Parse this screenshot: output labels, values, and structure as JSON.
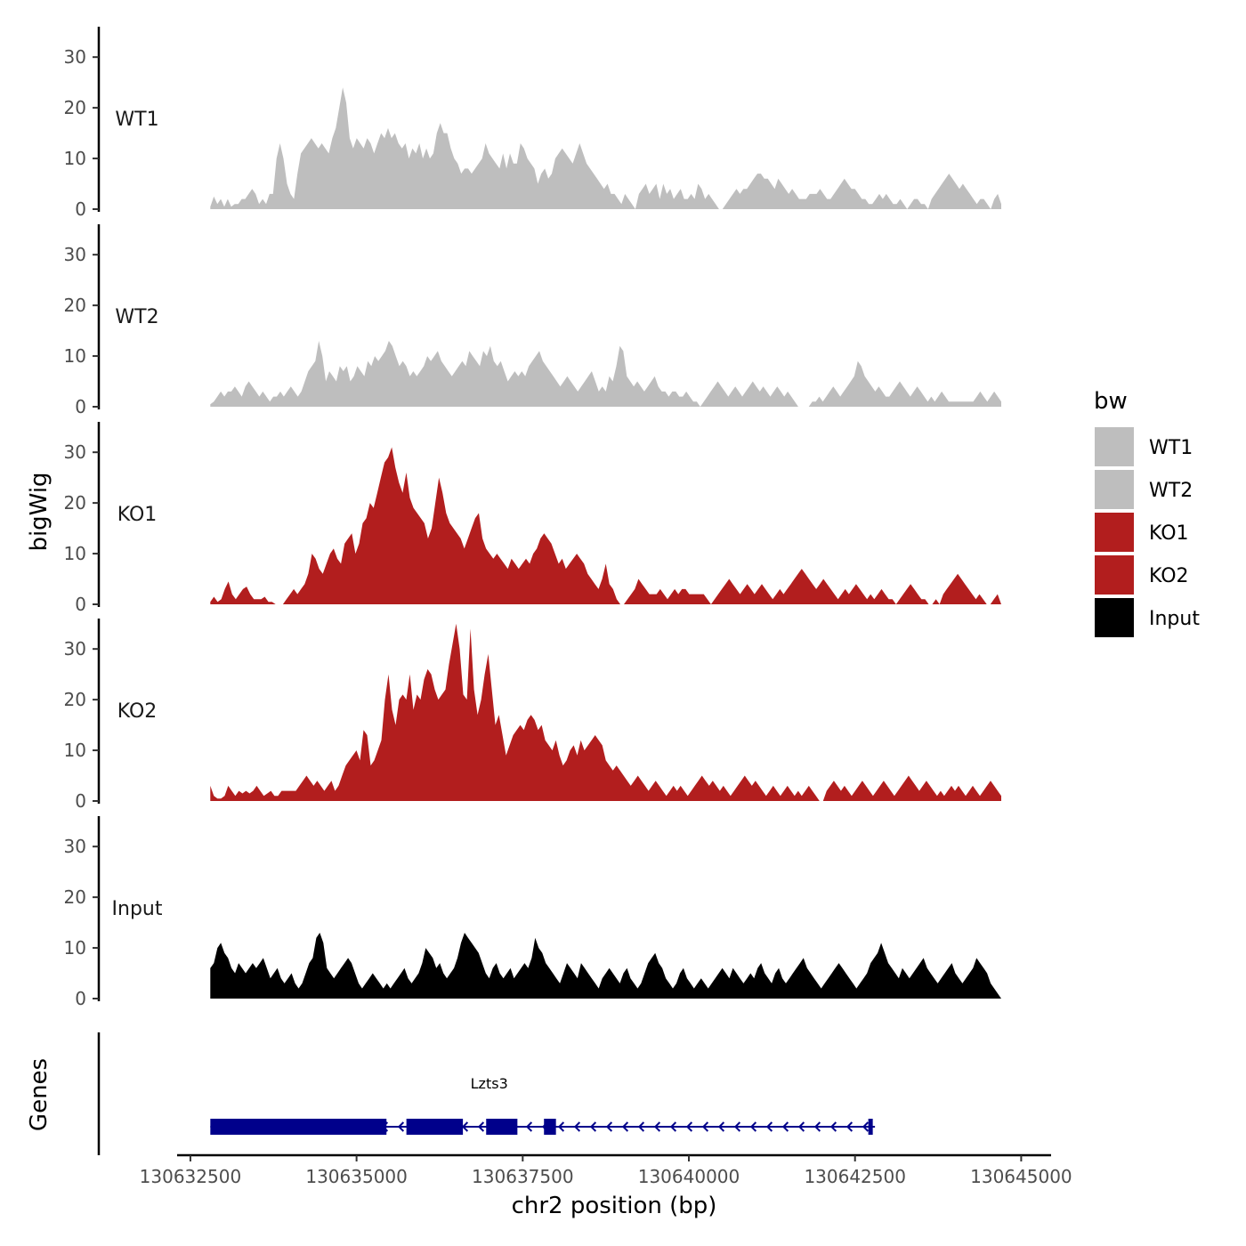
{
  "chart_data": {
    "type": "area",
    "title": "",
    "ylabel": "bigWig",
    "xlabel": "chr2 position (bp)",
    "x_range": [
      130632800,
      130644700
    ],
    "xlim": [
      130632300,
      130645450
    ],
    "ylim": [
      0,
      36
    ],
    "y_ticks": [
      0,
      10,
      20,
      30
    ],
    "y_tick_labels": [
      "0",
      "10",
      "20",
      "30"
    ],
    "x_ticks": [
      130632500,
      130635000,
      130637500,
      130640000,
      130642500,
      130645000
    ],
    "x_tick_labels": [
      "130632500",
      "130635000",
      "130637500",
      "130640000",
      "130642500",
      "130645000"
    ],
    "legend": {
      "title": "bw",
      "position": "right",
      "items": [
        {
          "label": "WT1",
          "color": "#BEBEBE"
        },
        {
          "label": "WT2",
          "color": "#BEBEBE"
        },
        {
          "label": "KO1",
          "color": "#B21E1E"
        },
        {
          "label": "KO2",
          "color": "#B21E1E"
        },
        {
          "label": "Input",
          "color": "#000000"
        }
      ]
    },
    "series": [
      {
        "name": "WT1",
        "color": "#BEBEBE",
        "values": [
          0.5,
          2.5,
          1,
          2,
          0.5,
          2,
          0.5,
          1,
          1,
          2,
          2,
          3,
          4,
          3,
          1,
          2,
          1,
          3,
          3,
          10,
          13,
          10,
          5,
          3,
          2,
          7,
          11,
          12,
          13,
          14,
          13,
          12,
          13,
          12,
          11,
          14,
          16,
          20,
          24,
          21,
          14,
          12,
          14,
          13,
          12,
          14,
          13,
          11,
          13,
          15,
          14,
          16,
          14,
          15,
          13,
          12,
          13,
          10,
          12,
          11,
          13,
          10,
          12,
          10,
          11,
          15,
          17,
          15,
          15,
          12,
          10,
          9,
          7,
          8,
          8,
          7,
          8,
          9,
          10,
          13,
          11,
          10,
          9,
          8,
          11,
          8,
          11,
          9,
          9,
          13,
          12,
          10,
          9,
          8,
          5,
          7,
          8,
          6,
          7,
          10,
          11,
          12,
          11,
          10,
          9,
          11,
          13,
          11,
          9,
          8,
          7,
          6,
          5,
          4,
          5,
          3,
          3,
          2,
          1,
          3,
          2,
          1,
          0,
          3,
          4,
          5,
          3,
          4,
          5,
          2,
          5,
          3,
          4,
          2,
          3,
          4,
          2,
          2,
          3,
          2,
          5,
          4,
          2,
          3,
          2,
          1,
          0,
          0,
          1,
          2,
          3,
          4,
          3,
          4,
          4,
          5,
          6,
          7,
          7,
          6,
          6,
          5,
          4,
          6,
          5,
          4,
          3,
          4,
          3,
          2,
          2,
          2,
          3,
          3,
          3,
          4,
          3,
          2,
          2,
          3,
          4,
          5,
          6,
          5,
          4,
          4,
          3,
          2,
          2,
          1,
          1,
          2,
          3,
          2,
          3,
          2,
          1,
          1,
          2,
          1,
          0,
          1,
          2,
          2,
          1,
          1,
          0,
          2,
          3,
          4,
          5,
          6,
          7,
          6,
          5,
          4,
          5,
          4,
          3,
          2,
          1,
          2,
          2,
          1,
          0,
          2,
          3,
          1
        ]
      },
      {
        "name": "WT2",
        "color": "#BEBEBE",
        "values": [
          0.5,
          1,
          2,
          3,
          2,
          3,
          3,
          4,
          3,
          2,
          4,
          5,
          4,
          3,
          2,
          3,
          2,
          1,
          2,
          2,
          3,
          2,
          3,
          4,
          3,
          2,
          3,
          5,
          7,
          8,
          9,
          13,
          10,
          5,
          7,
          6,
          5,
          8,
          7,
          8,
          5,
          6,
          8,
          7,
          6,
          9,
          8,
          10,
          9,
          10,
          11,
          13,
          12,
          10,
          8,
          9,
          8,
          6,
          7,
          6,
          7,
          8,
          10,
          9,
          10,
          11,
          9,
          8,
          7,
          6,
          7,
          8,
          9,
          8,
          11,
          10,
          9,
          8,
          11,
          10,
          12,
          9,
          8,
          9,
          7,
          5,
          6,
          7,
          6,
          7,
          6,
          8,
          9,
          10,
          11,
          9,
          8,
          7,
          6,
          5,
          4,
          5,
          6,
          5,
          4,
          3,
          4,
          5,
          6,
          7,
          5,
          3,
          4,
          3,
          6,
          5,
          8,
          12,
          11,
          6,
          5,
          4,
          5,
          4,
          3,
          4,
          5,
          6,
          4,
          3,
          3,
          2,
          3,
          3,
          2,
          2,
          3,
          2,
          1,
          1,
          0,
          1,
          2,
          3,
          4,
          5,
          4,
          3,
          2,
          3,
          4,
          3,
          2,
          3,
          4,
          5,
          4,
          3,
          4,
          3,
          2,
          3,
          4,
          3,
          2,
          3,
          2,
          1,
          0,
          0,
          0,
          0,
          1,
          1,
          2,
          1,
          2,
          3,
          4,
          3,
          2,
          3,
          4,
          5,
          6,
          9,
          8,
          6,
          5,
          4,
          3,
          4,
          3,
          2,
          2,
          3,
          4,
          5,
          4,
          3,
          2,
          3,
          4,
          3,
          2,
          1,
          2,
          1,
          2,
          3,
          2,
          1,
          1,
          1,
          1,
          1,
          1,
          1,
          1,
          2,
          3,
          2,
          1,
          2,
          3,
          2,
          1
        ]
      },
      {
        "name": "KO1",
        "color": "#B21E1E",
        "values": [
          0.5,
          1.5,
          0.5,
          1,
          3,
          4.5,
          2,
          1,
          2,
          3,
          3.5,
          2,
          1,
          1,
          1,
          1.5,
          0.5,
          0.5,
          0,
          0,
          0,
          1,
          2,
          3,
          2,
          3,
          4,
          6,
          10,
          9,
          7,
          6,
          8,
          10,
          11,
          9,
          8,
          12,
          13,
          14,
          10,
          12,
          16,
          17,
          20,
          19,
          22,
          25,
          28,
          29,
          31,
          27,
          24,
          22,
          26,
          21,
          19,
          18,
          17,
          16,
          13,
          15,
          20,
          25,
          22,
          18,
          16,
          15,
          14,
          13,
          11,
          13,
          15,
          17,
          18,
          13,
          11,
          10,
          9,
          10,
          9,
          8,
          7,
          9,
          8,
          7,
          8,
          9,
          8,
          10,
          11,
          13,
          14,
          13,
          12,
          10,
          8,
          9,
          7,
          8,
          9,
          10,
          9,
          8,
          6,
          5,
          4,
          3,
          5,
          8,
          4,
          3,
          1,
          0,
          0,
          1,
          2,
          3,
          5,
          4,
          3,
          2,
          2,
          2,
          3,
          2,
          1,
          2,
          3,
          2,
          3,
          3,
          2,
          2,
          2,
          2,
          2,
          1,
          0,
          1,
          2,
          3,
          4,
          5,
          4,
          3,
          2,
          3,
          4,
          3,
          2,
          3,
          4,
          3,
          2,
          1,
          2,
          3,
          2,
          3,
          4,
          5,
          6,
          7,
          6,
          5,
          4,
          3,
          4,
          5,
          4,
          3,
          2,
          1,
          2,
          3,
          2,
          3,
          4,
          3,
          2,
          1,
          2,
          1,
          2,
          3,
          2,
          1,
          1,
          0,
          1,
          2,
          3,
          4,
          3,
          2,
          1,
          1,
          0,
          0,
          1,
          0,
          2,
          3,
          4,
          5,
          6,
          5,
          4,
          3,
          2,
          1,
          2,
          1,
          0,
          0,
          1,
          2,
          0
        ]
      },
      {
        "name": "KO2",
        "color": "#B21E1E",
        "values": [
          3,
          1,
          0.5,
          0.5,
          1,
          3,
          2,
          1,
          2,
          1.5,
          2,
          1.5,
          2,
          3,
          2,
          1,
          1.5,
          2,
          1,
          1,
          2,
          2,
          2,
          2,
          2,
          3,
          4,
          5,
          4,
          3,
          4,
          3,
          2,
          3,
          4,
          2,
          3,
          5,
          7,
          8,
          9,
          10,
          8,
          14,
          13,
          7,
          8,
          10,
          12,
          20,
          25,
          18,
          15,
          20,
          21,
          20,
          25,
          18,
          21,
          20,
          24,
          26,
          25,
          22,
          20,
          21,
          22,
          27,
          31,
          35,
          30,
          21,
          20,
          34,
          22,
          17,
          20,
          25,
          29,
          22,
          15,
          17,
          13,
          9,
          11,
          13,
          14,
          15,
          14,
          16,
          17,
          16,
          14,
          15,
          12,
          11,
          10,
          12,
          9,
          7,
          8,
          10,
          11,
          9,
          12,
          10,
          11,
          12,
          13,
          12,
          11,
          8,
          7,
          6,
          7,
          6,
          5,
          4,
          3,
          4,
          5,
          4,
          3,
          2,
          3,
          4,
          3,
          2,
          1,
          2,
          3,
          2,
          3,
          2,
          1,
          2,
          3,
          4,
          5,
          4,
          3,
          4,
          3,
          2,
          3,
          2,
          1,
          2,
          3,
          4,
          5,
          4,
          3,
          4,
          3,
          2,
          1,
          2,
          3,
          2,
          1,
          2,
          3,
          2,
          1,
          2,
          1,
          2,
          3,
          2,
          1,
          0,
          0,
          2,
          3,
          4,
          3,
          2,
          3,
          2,
          1,
          2,
          3,
          4,
          3,
          2,
          1,
          2,
          3,
          4,
          3,
          2,
          1,
          2,
          3,
          4,
          5,
          4,
          3,
          2,
          3,
          4,
          3,
          2,
          1,
          2,
          1,
          2,
          3,
          2,
          3,
          2,
          1,
          2,
          3,
          2,
          1,
          2,
          3,
          4,
          3,
          2,
          1
        ]
      },
      {
        "name": "Input",
        "color": "#000000",
        "values": [
          6,
          7,
          10,
          11,
          9,
          8,
          6,
          5,
          7,
          6,
          5,
          6,
          7,
          6,
          7,
          8,
          6,
          4,
          5,
          6,
          4,
          3,
          4,
          5,
          3,
          2,
          3,
          5,
          7,
          8,
          12,
          13,
          11,
          6,
          5,
          4,
          5,
          6,
          7,
          8,
          7,
          5,
          3,
          2,
          3,
          4,
          5,
          4,
          3,
          2,
          3,
          2,
          3,
          4,
          5,
          6,
          4,
          3,
          4,
          5,
          7,
          10,
          9,
          8,
          6,
          7,
          5,
          4,
          5,
          6,
          8,
          11,
          13,
          12,
          11,
          10,
          9,
          7,
          5,
          4,
          6,
          7,
          5,
          4,
          5,
          6,
          4,
          5,
          6,
          7,
          6,
          8,
          12,
          10,
          9,
          7,
          6,
          5,
          4,
          3,
          5,
          7,
          6,
          5,
          4,
          7,
          6,
          5,
          4,
          3,
          2,
          4,
          5,
          6,
          5,
          4,
          3,
          5,
          6,
          4,
          3,
          2,
          3,
          5,
          7,
          8,
          9,
          7,
          6,
          4,
          3,
          2,
          3,
          5,
          6,
          4,
          3,
          2,
          3,
          4,
          3,
          2,
          3,
          4,
          5,
          6,
          5,
          4,
          6,
          5,
          4,
          3,
          4,
          5,
          4,
          6,
          7,
          5,
          4,
          3,
          5,
          6,
          4,
          3,
          4,
          5,
          6,
          7,
          8,
          6,
          5,
          4,
          3,
          2,
          3,
          4,
          5,
          6,
          7,
          6,
          5,
          4,
          3,
          2,
          3,
          4,
          5,
          7,
          8,
          9,
          11,
          9,
          7,
          6,
          5,
          4,
          6,
          5,
          4,
          5,
          6,
          7,
          8,
          6,
          5,
          4,
          3,
          4,
          5,
          6,
          7,
          5,
          4,
          3,
          4,
          5,
          6,
          8,
          7,
          6,
          5,
          3,
          2,
          1,
          0
        ]
      }
    ],
    "genes": {
      "track_label": "Genes",
      "name": "Lzts3",
      "color": "#00008B",
      "strand": "-",
      "span": [
        130632800,
        130642800
      ],
      "exons": [
        [
          130632800,
          130635450
        ],
        [
          130635750,
          130636600
        ],
        [
          130636950,
          130637420
        ],
        [
          130637820,
          130638000
        ],
        [
          130642700,
          130642760
        ]
      ]
    }
  }
}
